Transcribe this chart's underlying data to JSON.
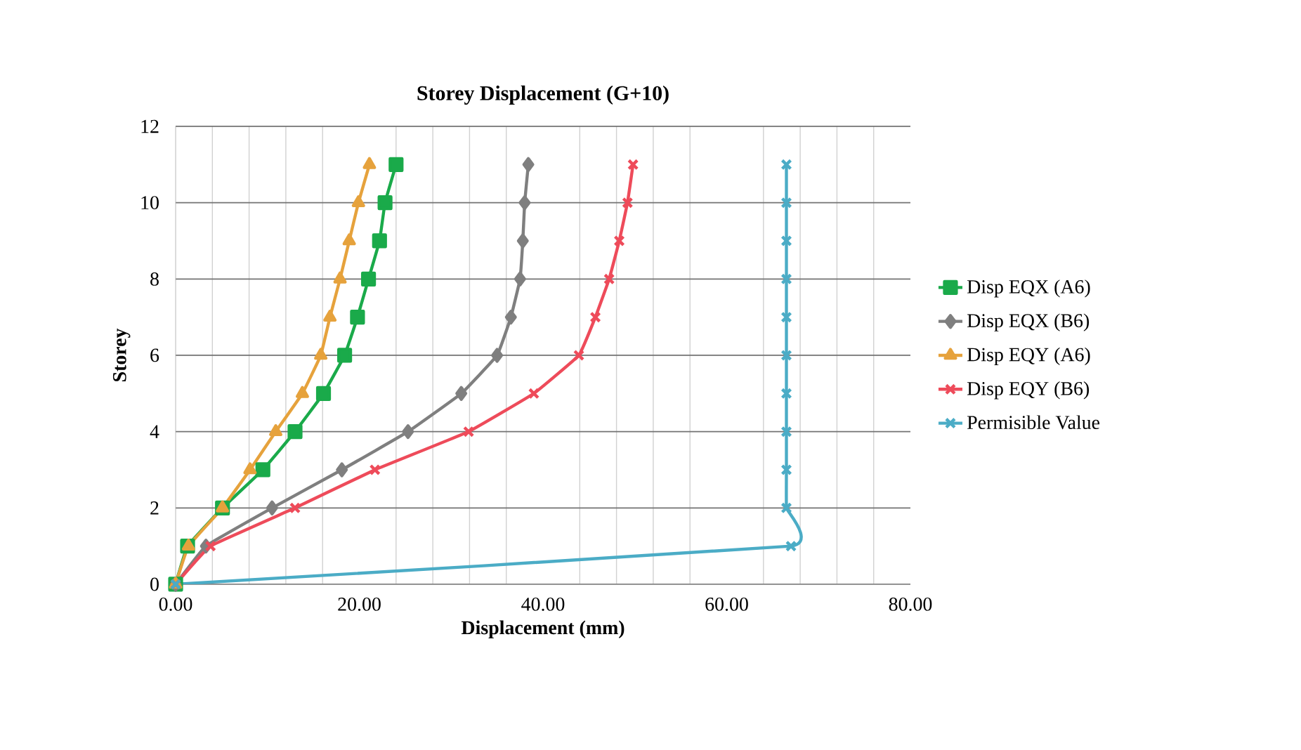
{
  "chart_data": {
    "type": "line",
    "title": "Storey Displacement (G+10)",
    "xlabel": "Displacement (mm)",
    "ylabel": "Storey",
    "xlim": [
      0,
      80
    ],
    "ylim": [
      0,
      12
    ],
    "xticks": [
      {
        "value": 0,
        "label": "0.00"
      },
      {
        "value": 20,
        "label": "20.00"
      },
      {
        "value": 40,
        "label": "40.00"
      },
      {
        "value": 60,
        "label": "60.00"
      },
      {
        "value": 80,
        "label": "80.00"
      }
    ],
    "yticks": [
      0,
      2,
      4,
      6,
      8,
      10,
      12
    ],
    "grid": true,
    "legend": "right",
    "series": [
      {
        "name": "Disp EQX (A6)",
        "color": "#1aaa4a",
        "marker": "square",
        "x": [
          0,
          1.3,
          5.1,
          9.5,
          13.0,
          16.1,
          18.4,
          19.8,
          21.0,
          22.2,
          22.8,
          24.0
        ],
        "values": [
          0,
          1,
          2,
          3,
          4,
          5,
          6,
          7,
          8,
          9,
          10,
          11
        ]
      },
      {
        "name": "Disp EQX (B6)",
        "color": "#7f7f7f",
        "marker": "diamond",
        "x": [
          0,
          3.3,
          10.5,
          18.1,
          25.3,
          31.1,
          35.0,
          36.5,
          37.5,
          37.8,
          38.0,
          38.4
        ],
        "values": [
          0,
          1,
          2,
          3,
          4,
          5,
          6,
          7,
          8,
          9,
          10,
          11
        ]
      },
      {
        "name": "Disp EQY (A6)",
        "color": "#e6a23c",
        "marker": "triangle",
        "x": [
          0,
          1.4,
          5.1,
          8.1,
          10.9,
          13.8,
          15.8,
          16.8,
          17.9,
          18.9,
          19.9,
          21.1
        ],
        "values": [
          0,
          1,
          2,
          3,
          4,
          5,
          6,
          7,
          8,
          9,
          10,
          11
        ]
      },
      {
        "name": "Disp EQY (B6)",
        "color": "#ee4b5a",
        "marker": "cross",
        "x": [
          0,
          3.8,
          13.0,
          21.7,
          31.9,
          39.0,
          43.9,
          45.7,
          47.2,
          48.3,
          49.2,
          49.8
        ],
        "values": [
          0,
          1,
          2,
          3,
          4,
          5,
          6,
          7,
          8,
          9,
          10,
          11
        ]
      },
      {
        "name": "Permisible Value",
        "color": "#4bacc6",
        "marker": "cross",
        "x": [
          0,
          67.0,
          66.5,
          66.5,
          66.5,
          66.5,
          66.5,
          66.5,
          66.5,
          66.5,
          66.5,
          66.5
        ],
        "values": [
          0,
          1,
          2,
          3,
          4,
          5,
          6,
          7,
          8,
          9,
          10,
          11
        ]
      }
    ]
  }
}
